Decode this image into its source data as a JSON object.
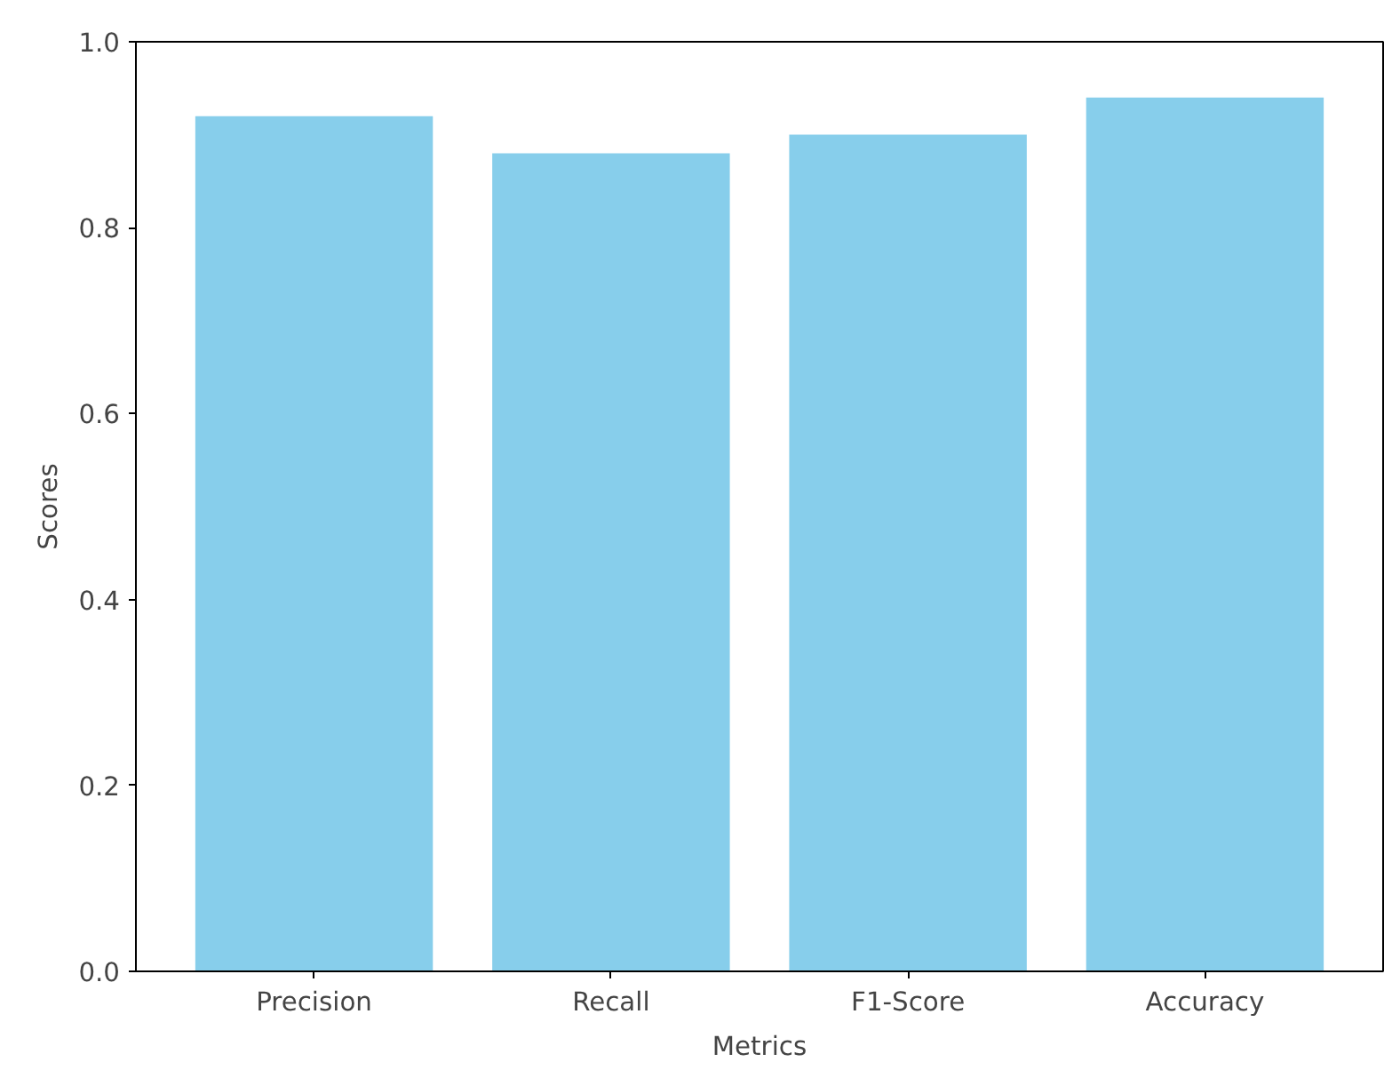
{
  "chart_data": {
    "type": "bar",
    "xlabel": "Metrics",
    "ylabel": "Scores",
    "categories": [
      "Precision",
      "Recall",
      "F1-Score",
      "Accuracy"
    ],
    "values": [
      0.92,
      0.88,
      0.9,
      0.94
    ],
    "color": "#87ceeb",
    "ylim": [
      0,
      1.0
    ],
    "yticks": [
      {
        "value": 0,
        "label": "0.0"
      },
      {
        "value": 0.2,
        "label": "0.2"
      },
      {
        "value": 0.4,
        "label": "0.4"
      },
      {
        "value": 0.6,
        "label": "0.6"
      },
      {
        "value": 0.8,
        "label": "0.8"
      },
      {
        "value": 1.0,
        "label": "1.0"
      }
    ],
    "grid": false
  }
}
